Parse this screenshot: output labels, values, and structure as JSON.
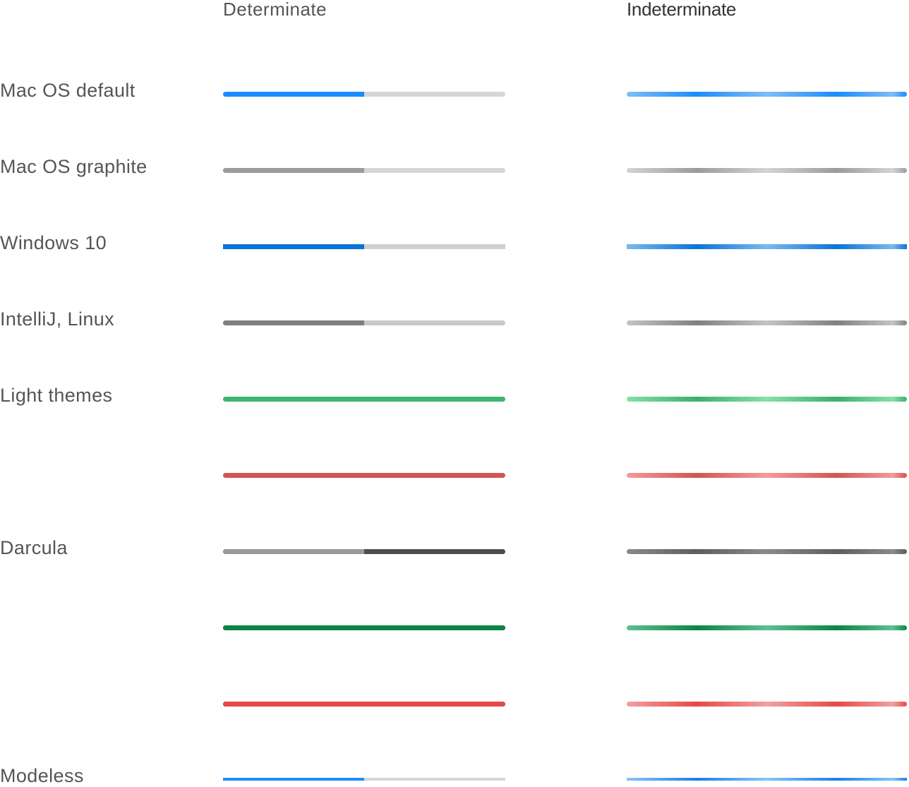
{
  "headers": {
    "determinate": "Determinate",
    "indeterminate": "Indeterminate"
  },
  "labels": {
    "mac_default": "Mac OS default",
    "mac_graphite": "Mac OS graphite",
    "windows10": "Windows 10",
    "intellij_linux": "IntelliJ, Linux",
    "light_themes": "Light themes",
    "darcula": "Darcula",
    "modeless": "Modeless"
  },
  "progress_bars": [
    {
      "style": "mac-default",
      "determinate": {
        "progress": 0.5,
        "fill": "#1a8cff",
        "track": "#d6d6d6"
      },
      "indeterminate": {
        "light": "#7fbdf5",
        "dark": "#1a8cff"
      }
    },
    {
      "style": "mac-graphite",
      "determinate": {
        "progress": 0.5,
        "fill": "#9b9b9f",
        "track": "#d6d6d6"
      },
      "indeterminate": {
        "light": "#d4d4d6",
        "dark": "#9b9b9f"
      }
    },
    {
      "style": "windows-10",
      "determinate": {
        "progress": 0.5,
        "fill": "#0a74d6",
        "track": "#d0d0d0"
      },
      "indeterminate": {
        "light": "#7ab8f0",
        "dark": "#0a74d6"
      }
    },
    {
      "style": "intellij-linux",
      "determinate": {
        "progress": 0.5,
        "fill": "#7f7f7f",
        "track": "#c9c9c9"
      },
      "indeterminate": {
        "light": "#c4c4c4",
        "dark": "#808080"
      }
    },
    {
      "style": "light-success",
      "determinate": {
        "progress": 1.0,
        "fill": "#3db56f",
        "track": "#d6d6d6"
      },
      "indeterminate": {
        "light": "#84e0a6",
        "dark": "#3ab06c"
      }
    },
    {
      "style": "light-error",
      "determinate": {
        "progress": 1.0,
        "fill": "#d45454",
        "track": "#d6d6d6"
      },
      "indeterminate": {
        "light": "#f59a9a",
        "dark": "#d45454"
      }
    },
    {
      "style": "darcula",
      "determinate": {
        "progress": 0.5,
        "fill": "#9a9a9a",
        "track": "#4d4d4d"
      },
      "indeterminate": {
        "light": "#8a8a8a",
        "dark": "#5e5e5e"
      }
    },
    {
      "style": "darcula-success",
      "determinate": {
        "progress": 1.0,
        "fill": "#0b8447",
        "track": "#4d4d4d"
      },
      "indeterminate": {
        "light": "#5dc08f",
        "dark": "#0b8447"
      }
    },
    {
      "style": "darcula-error",
      "determinate": {
        "progress": 1.0,
        "fill": "#e84848",
        "track": "#4d4d4d"
      },
      "indeterminate": {
        "light": "#f2a0a0",
        "dark": "#e84848"
      }
    },
    {
      "style": "modeless",
      "determinate": {
        "progress": 0.5,
        "fill": "#1a8cff",
        "track": "#d6d6d6"
      },
      "indeterminate": {
        "light": "#86c3f7",
        "dark": "#1a7fe6"
      }
    }
  ]
}
